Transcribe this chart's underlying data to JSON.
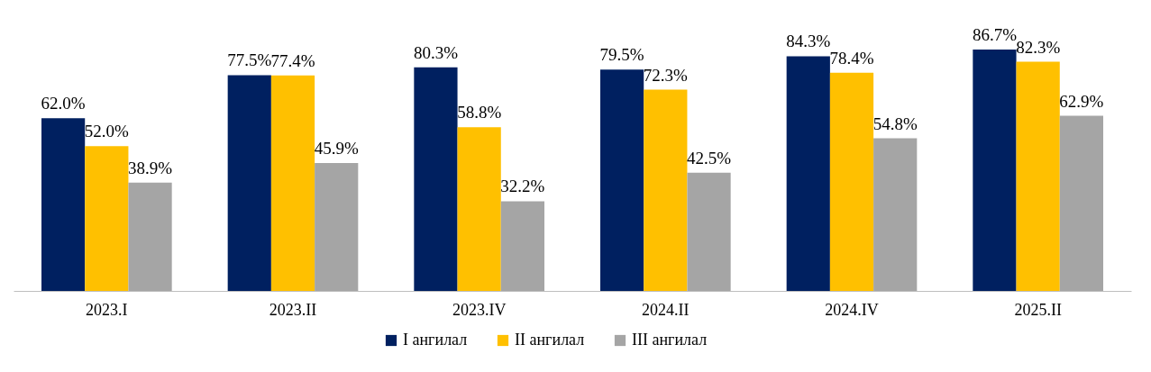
{
  "chart_data": {
    "type": "bar",
    "categories": [
      "2023.I",
      "2023.II",
      "2023.IV",
      "2024.II",
      "2024.IV",
      "2025.II"
    ],
    "series": [
      {
        "name": "I ангилал",
        "color": "#002060",
        "values": [
          62.0,
          77.5,
          80.3,
          79.5,
          84.3,
          86.7
        ],
        "value_labels": [
          "62.0%",
          "77.5%",
          "80.3%",
          "79.5%",
          "84.3%",
          "86.7%"
        ]
      },
      {
        "name": "II ангилал",
        "color": "#ffc000",
        "values": [
          52.0,
          77.4,
          58.8,
          72.3,
          78.4,
          82.3
        ],
        "value_labels": [
          "52.0%",
          "77.4%",
          "58.8%",
          "72.3%",
          "78.4%",
          "82.3%"
        ]
      },
      {
        "name": "III ангилал",
        "color": "#a5a5a5",
        "values": [
          38.9,
          45.9,
          32.2,
          42.5,
          54.8,
          62.9
        ],
        "value_labels": [
          "38.9%",
          "45.9%",
          "32.2%",
          "42.5%",
          "54.8%",
          "62.9%"
        ]
      }
    ],
    "legend": "bottom"
  }
}
